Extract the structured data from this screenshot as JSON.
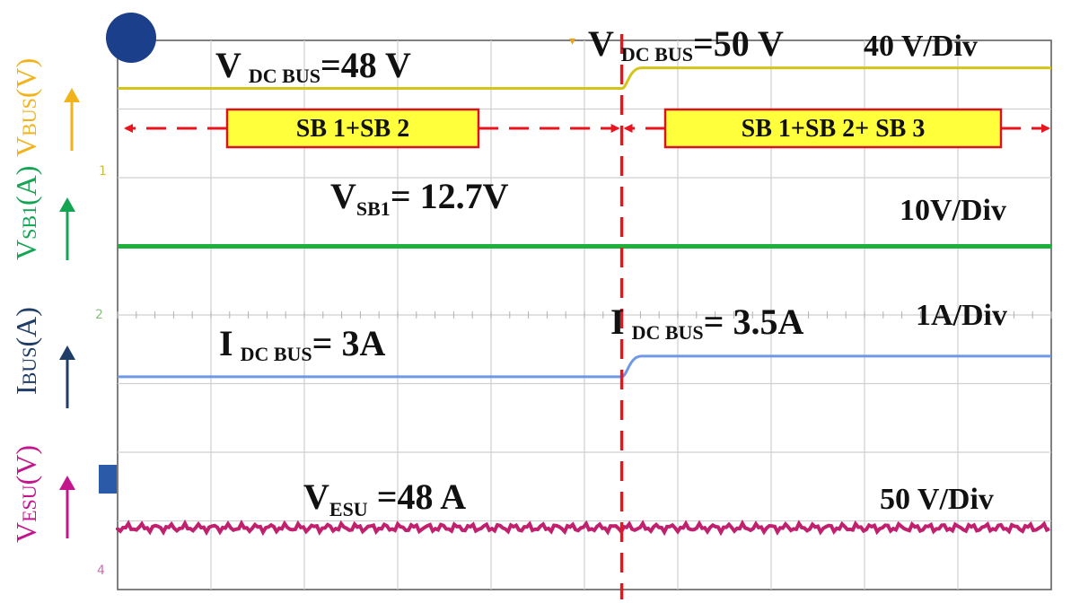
{
  "chart_data": {
    "type": "line",
    "title": "",
    "xlabel": "",
    "grid": true,
    "x_divisions": 10,
    "y_divisions": 8,
    "transition_division": 5.4,
    "channels": [
      {
        "key": "vbus",
        "axis_label": {
          "main": "V",
          "sub": "BUS",
          "unit": "(V)"
        },
        "color": "#d4c417",
        "axis_color": "#f2b21a",
        "level_before_div": 7.3,
        "level_after_div": 7.6
      },
      {
        "key": "vsb1",
        "axis_label": {
          "main": "V",
          "sub": "SB1",
          "unit": "(A)"
        },
        "color": "#1db03a",
        "axis_color": "#14a553",
        "level_before_div": 5.0,
        "level_after_div": 5.0
      },
      {
        "key": "ibus",
        "axis_label": {
          "main": "I",
          "sub": "BUS",
          "unit": "(A)"
        },
        "color": "#6f98e8",
        "axis_color": "#1f3d66",
        "level_before_div": 3.1,
        "level_after_div": 3.4
      },
      {
        "key": "vesu",
        "axis_label": {
          "main": "V",
          "sub": "ESU",
          "unit": "(V)"
        },
        "color": "#c0206e",
        "axis_color": "#c4168c",
        "level_before_div": 0.9,
        "level_after_div": 0.9
      }
    ],
    "annotations": {
      "vbus_before": {
        "main": "V",
        "sub": "DC BUS",
        "rest": "=48 V"
      },
      "vbus_after": {
        "main": "V",
        "sub": "DC BUS",
        "rest": "=50 V"
      },
      "vbus_scale": "40 V/Div",
      "mode_before": "SB 1+SB 2",
      "mode_after": "SB 1+SB 2+ SB 3",
      "vsb1_value": {
        "main": "V",
        "sub": "SB1",
        "rest": "= 12.7V"
      },
      "vsb1_scale": "10V/Div",
      "ibus_before": {
        "main": "I",
        "sub": "DC BUS",
        "rest": "= 3A"
      },
      "ibus_after": {
        "main": "I",
        "sub": "DC BUS",
        "rest": "= 3.5A"
      },
      "ibus_scale": "1A/Div",
      "vesu_value": {
        "main": "V",
        "sub": "ESU",
        "rest": " =48 A"
      },
      "vesu_scale": "50 V/Div"
    },
    "colors": {
      "mode_box_fill": "#ffff3c",
      "mode_box_border": "#d8141e",
      "arrow": "#e8141e",
      "grid": "#cfcfcf"
    }
  }
}
